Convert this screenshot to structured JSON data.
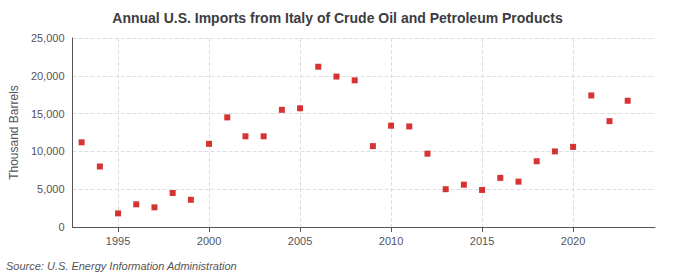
{
  "chart_data": {
    "type": "scatter",
    "title": "Annual U.S. Imports from Italy of Crude Oil and Petroleum Products",
    "ylabel": "Thousand Barrels",
    "annotations": [
      "Source: U.S. Energy Information Administration"
    ],
    "x": [
      1993,
      1994,
      1995,
      1996,
      1997,
      1998,
      1999,
      2000,
      2001,
      2002,
      2003,
      2004,
      2005,
      2006,
      2007,
      2008,
      2009,
      2010,
      2011,
      2012,
      2013,
      2014,
      2015,
      2016,
      2017,
      2018,
      2019,
      2020,
      2021,
      2022,
      2023
    ],
    "values": [
      11200,
      8000,
      1800,
      3000,
      2600,
      4500,
      3600,
      11000,
      14500,
      12000,
      12000,
      15500,
      15700,
      21200,
      19900,
      19400,
      10700,
      13400,
      13300,
      9700,
      5000,
      5600,
      4900,
      6500,
      6000,
      8700,
      10000,
      10600,
      17400,
      14000,
      16700
    ],
    "color": "#cc0000",
    "marker": "square",
    "xlim": [
      1992.5,
      2024.5
    ],
    "xticks": [
      1995,
      2000,
      2005,
      2010,
      2015,
      2020
    ],
    "ylim": [
      0,
      25000
    ],
    "yticks": [
      0,
      {
        "value": 5000,
        "label": "5,000"
      },
      {
        "value": 10000,
        "label": "10,000"
      },
      {
        "value": 15000,
        "label": "15,000"
      },
      {
        "value": 20000,
        "label": "20,000"
      },
      {
        "value": 25000,
        "label": "25,000"
      }
    ],
    "grid": true
  }
}
